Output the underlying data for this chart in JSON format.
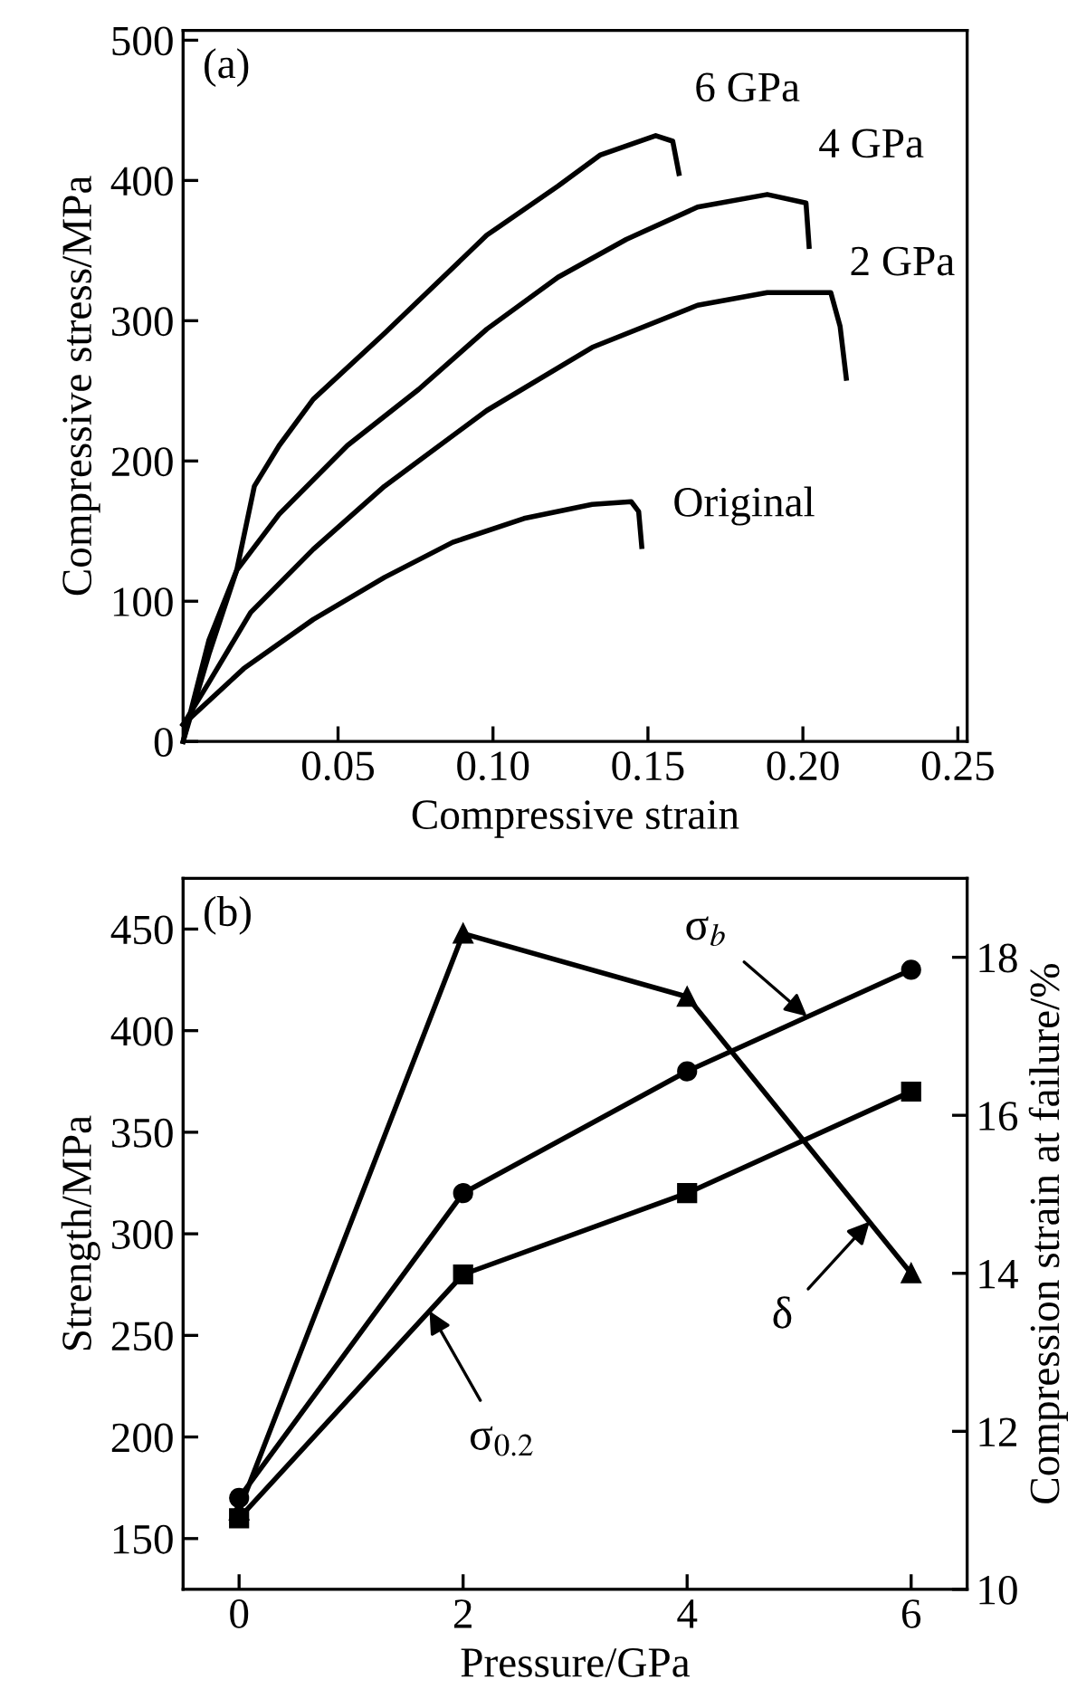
{
  "chart_data": [
    {
      "type": "line",
      "xlabel": "Compressive strain",
      "ylabel": "Compressive stress/MPa",
      "xlim": [
        0,
        0.253
      ],
      "ylim": [
        0,
        507
      ],
      "xticks": [
        0.05,
        {
          "value": 0.1,
          "label": "0.10"
        },
        0.15,
        {
          "value": 0.2,
          "label": "0.20"
        },
        0.25
      ],
      "yticks": [
        {
          "value": 0,
          "label": "0"
        },
        100,
        200,
        300,
        400,
        500
      ],
      "grid": false,
      "legend": false,
      "marker": "none",
      "line_style": "solid",
      "annotations": [
        "(a)"
      ],
      "series": [
        {
          "name": "6 GPa",
          "color": "#000000",
          "x": [
            0,
            0.0083,
            0.0173,
            0.023,
            0.031,
            0.042,
            0.065,
            0.098,
            0.121,
            0.1345,
            0.1525,
            0.158,
            0.16
          ],
          "values": [
            0,
            62,
            122,
            182,
            211,
            244,
            291,
            361,
            396,
            418,
            432,
            428,
            405
          ]
        },
        {
          "name": "4 GPa",
          "color": "#000000",
          "x": [
            0,
            0.0083,
            0.0173,
            0.031,
            0.053,
            0.076,
            0.098,
            0.121,
            0.143,
            0.166,
            0.1885,
            0.201,
            0.202
          ],
          "values": [
            0,
            72,
            122,
            162,
            211,
            251,
            294,
            331,
            358,
            381,
            390,
            384,
            353
          ]
        },
        {
          "name": "2 GPa",
          "color": "#000000",
          "x": [
            0,
            0.0083,
            0.0218,
            0.042,
            0.065,
            0.098,
            0.132,
            0.166,
            0.1885,
            0.209,
            0.212,
            0.214
          ],
          "values": [
            12,
            42,
            92,
            137,
            182,
            236,
            281,
            311,
            320,
            320,
            296,
            259
          ]
        },
        {
          "name": "Original",
          "color": "#000000",
          "x": [
            0,
            0.0196,
            0.042,
            0.065,
            0.087,
            0.11,
            0.132,
            0.1446,
            0.147,
            0.148
          ],
          "values": [
            12,
            52,
            87,
            117,
            142,
            159,
            169,
            171,
            164,
            139
          ]
        }
      ]
    },
    {
      "type": "line",
      "xlabel": "Pressure/GPa",
      "ylabel": "Strength/MPa",
      "y2label": "Compression strain at failure/%",
      "x": [
        0,
        2,
        4,
        6
      ],
      "xlim": [
        -0.5,
        6.5
      ],
      "ylim": [
        125,
        475
      ],
      "y2lim": [
        10,
        19
      ],
      "xticks": [
        0,
        2,
        4,
        6
      ],
      "yticks": [
        150,
        200,
        250,
        300,
        350,
        400,
        450
      ],
      "y2ticks": [
        10,
        12,
        14,
        16,
        18
      ],
      "grid": false,
      "legend": false,
      "line_style": "solid",
      "annotations": [
        "(b)",
        {
          "text": "σ$_{b}$",
          "x": 5.07,
          "y": 407
        },
        {
          "text": "σ$_{0.2}$",
          "x": 1.7,
          "y": 262
        },
        {
          "text": "δ",
          "x": 5.63,
          "y": 306
        }
      ],
      "series": [
        {
          "color": "#000000",
          "marker": "circle",
          "values": [
            170,
            320,
            380,
            430
          ]
        },
        {
          "color": "#000000",
          "marker": "square",
          "values": [
            160,
            280,
            320,
            370
          ]
        },
        {
          "color": "#000000",
          "marker": "triangle",
          "axis": "y2",
          "values": [
            11.0,
            18.3,
            17.5,
            14.0
          ]
        }
      ]
    }
  ]
}
